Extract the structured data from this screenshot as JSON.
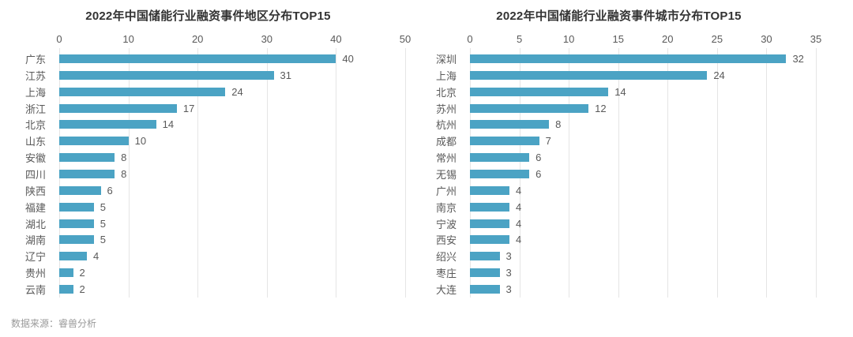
{
  "source": "数据来源：睿兽分析",
  "colors": {
    "bar": "#4BA3C4",
    "grid": "#e5e5e5",
    "title": "#333333",
    "label": "#595959",
    "source": "#999999",
    "background": "#ffffff"
  },
  "chart_data": [
    {
      "type": "bar",
      "orientation": "horizontal",
      "title": "2022年中国储能行业融资事件地区分布TOP15",
      "categories": [
        "广东",
        "江苏",
        "上海",
        "浙江",
        "北京",
        "山东",
        "安徽",
        "四川",
        "陕西",
        "福建",
        "湖北",
        "湖南",
        "辽宁",
        "贵州",
        "云南"
      ],
      "values": [
        40,
        31,
        24,
        17,
        14,
        10,
        8,
        8,
        6,
        5,
        5,
        5,
        4,
        2,
        2
      ],
      "xlim": [
        0,
        50
      ],
      "xticks": [
        0,
        10,
        20,
        30,
        40,
        50
      ],
      "grid": true,
      "value_labels": true,
      "axis_position": "top",
      "legend": "none"
    },
    {
      "type": "bar",
      "orientation": "horizontal",
      "title": "2022年中国储能行业融资事件城市分布TOP15",
      "categories": [
        "深圳",
        "上海",
        "北京",
        "苏州",
        "杭州",
        "成都",
        "常州",
        "无锡",
        "广州",
        "南京",
        "宁波",
        "西安",
        "绍兴",
        "枣庄",
        "大连"
      ],
      "values": [
        32,
        24,
        14,
        12,
        8,
        7,
        6,
        6,
        4,
        4,
        4,
        4,
        3,
        3,
        3
      ],
      "xlim": [
        0,
        35
      ],
      "xticks": [
        0,
        5,
        10,
        15,
        20,
        25,
        30,
        35
      ],
      "grid": true,
      "value_labels": true,
      "axis_position": "top",
      "legend": "none"
    }
  ]
}
